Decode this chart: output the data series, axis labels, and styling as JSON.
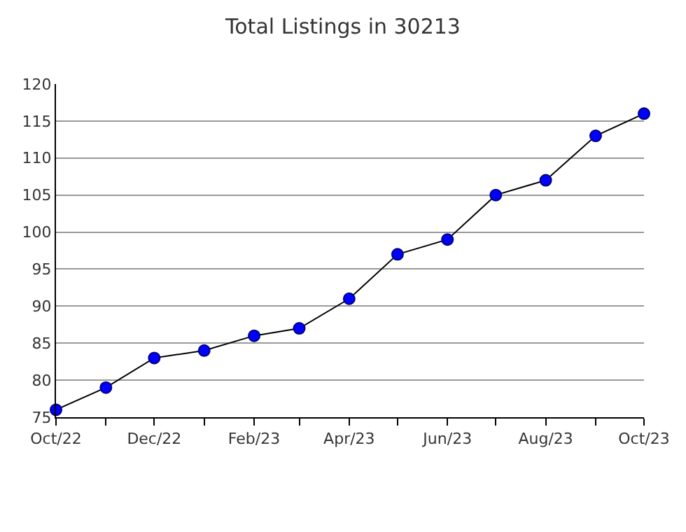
{
  "chart_data": {
    "type": "line",
    "title": "Total Listings in 30213",
    "x": [
      "2022-10",
      "2022-11",
      "2022-12",
      "2023-01",
      "2023-02",
      "2023-03",
      "2023-04",
      "2023-05",
      "2023-06",
      "2023-07",
      "2023-08",
      "2023-09",
      "2023-10"
    ],
    "series": [
      {
        "color": "#0000ff",
        "values": [
          76,
          79,
          83,
          84,
          86,
          87,
          91,
          97,
          99,
          105,
          107,
          113,
          116
        ]
      }
    ],
    "marker": "circle",
    "line_style": "solid",
    "grid": "y",
    "legend": false,
    "xlim": [
      "2022-10",
      "2023-10"
    ],
    "xticks": [
      {
        "value": "2022-10",
        "label": "Oct/22"
      },
      {
        "value": "2022-11",
        "label": null
      },
      {
        "value": "2022-12",
        "label": "Dec/22"
      },
      {
        "value": "2023-01",
        "label": null
      },
      {
        "value": "2023-02",
        "label": "Feb/23"
      },
      {
        "value": "2023-03",
        "label": null
      },
      {
        "value": "2023-04",
        "label": "Apr/23"
      },
      {
        "value": "2023-05",
        "label": null
      },
      {
        "value": "2023-06",
        "label": "Jun/23"
      },
      {
        "value": "2023-07",
        "label": null
      },
      {
        "value": "2023-08",
        "label": "Aug/23"
      },
      {
        "value": "2023-09",
        "label": null
      },
      {
        "value": "2023-10",
        "label": "Oct/23"
      }
    ],
    "ylim": [
      75,
      120
    ],
    "yticks": [
      75,
      80,
      85,
      90,
      95,
      100,
      105,
      110,
      115,
      120
    ]
  }
}
